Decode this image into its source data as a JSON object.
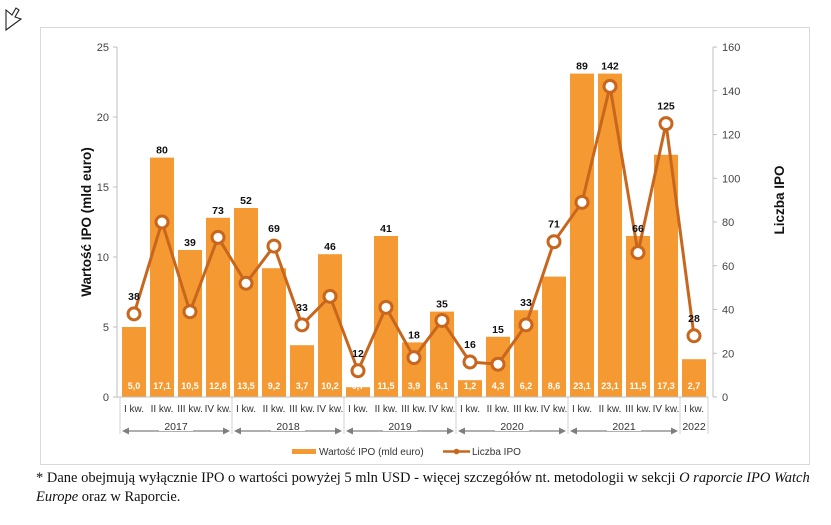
{
  "chart_data": {
    "type": "bar+line",
    "title": "",
    "categories": [
      "I kw.",
      "II kw.",
      "III kw.",
      "IV kw.",
      "I kw.",
      "II kw.",
      "III kw.",
      "IV kw.",
      "I kw.",
      "II kw.",
      "III kw.",
      "IV kw.",
      "I kw.",
      "II kw.",
      "III kw.",
      "IV kw.",
      "I kw.",
      "II kw.",
      "III kw.",
      "IV kw.",
      "I kw."
    ],
    "groups": [
      {
        "label": "2017",
        "count": 4
      },
      {
        "label": "2018",
        "count": 4
      },
      {
        "label": "2019",
        "count": 4
      },
      {
        "label": "2020",
        "count": 4
      },
      {
        "label": "2021",
        "count": 4
      },
      {
        "label": "2022",
        "count": 1
      }
    ],
    "series": [
      {
        "name": "Wartość IPO (mld euro)",
        "type": "bar",
        "axis": "left",
        "color": "#F59A32",
        "values": [
          5.0,
          17.1,
          10.5,
          12.8,
          13.5,
          9.2,
          3.7,
          10.2,
          0.7,
          11.5,
          3.9,
          6.1,
          1.2,
          4.3,
          6.2,
          8.6,
          23.1,
          23.1,
          11.5,
          17.3,
          2.7
        ],
        "labels": [
          "5,0",
          "17,1",
          "10,5",
          "12,8",
          "13,5",
          "9,2",
          "3,7",
          "10,2",
          "0,7",
          "11,5",
          "3,9",
          "6,1",
          "1,2",
          "4,3",
          "6,2",
          "8,6",
          "23,1",
          "23,1",
          "11,5",
          "17,3",
          "2,7"
        ]
      },
      {
        "name": "Liczba IPO",
        "type": "line",
        "axis": "right",
        "color": "#C8661E",
        "values": [
          38,
          80,
          39,
          73,
          52,
          69,
          33,
          46,
          12,
          41,
          18,
          35,
          16,
          15,
          33,
          71,
          89,
          142,
          66,
          125,
          28
        ],
        "labels": [
          "38",
          "80",
          "39",
          "73",
          "52",
          "69",
          "33",
          "46",
          "12",
          "41",
          "18",
          "35",
          "16",
          "15",
          "33",
          "71",
          "89",
          "142",
          "66",
          "125",
          "28"
        ]
      }
    ],
    "ylabel": "Wartość IPO (mld euro)",
    "ylim": [
      0,
      25
    ],
    "yticks": [
      "0",
      "5",
      "10",
      "15",
      "20",
      "25"
    ],
    "y2label": "Liczba IPO",
    "y2lim": [
      0,
      160
    ],
    "y2ticks": [
      "0",
      "20",
      "40",
      "60",
      "80",
      "100",
      "120",
      "140",
      "160"
    ],
    "grid": false,
    "legend": {
      "position": "bottom",
      "entries": [
        "Wartość IPO (mld euro)",
        "Liczba IPO"
      ]
    }
  },
  "footnote": {
    "prefix": "* Dane obejmują wyłącznie IPO o wartości powyżej 5 mln USD - więcej szczegółów nt. metodologii w sekcji ",
    "italic1": "O raporcie IPO Watch Europe",
    "suffix": " oraz w Raporcie."
  }
}
